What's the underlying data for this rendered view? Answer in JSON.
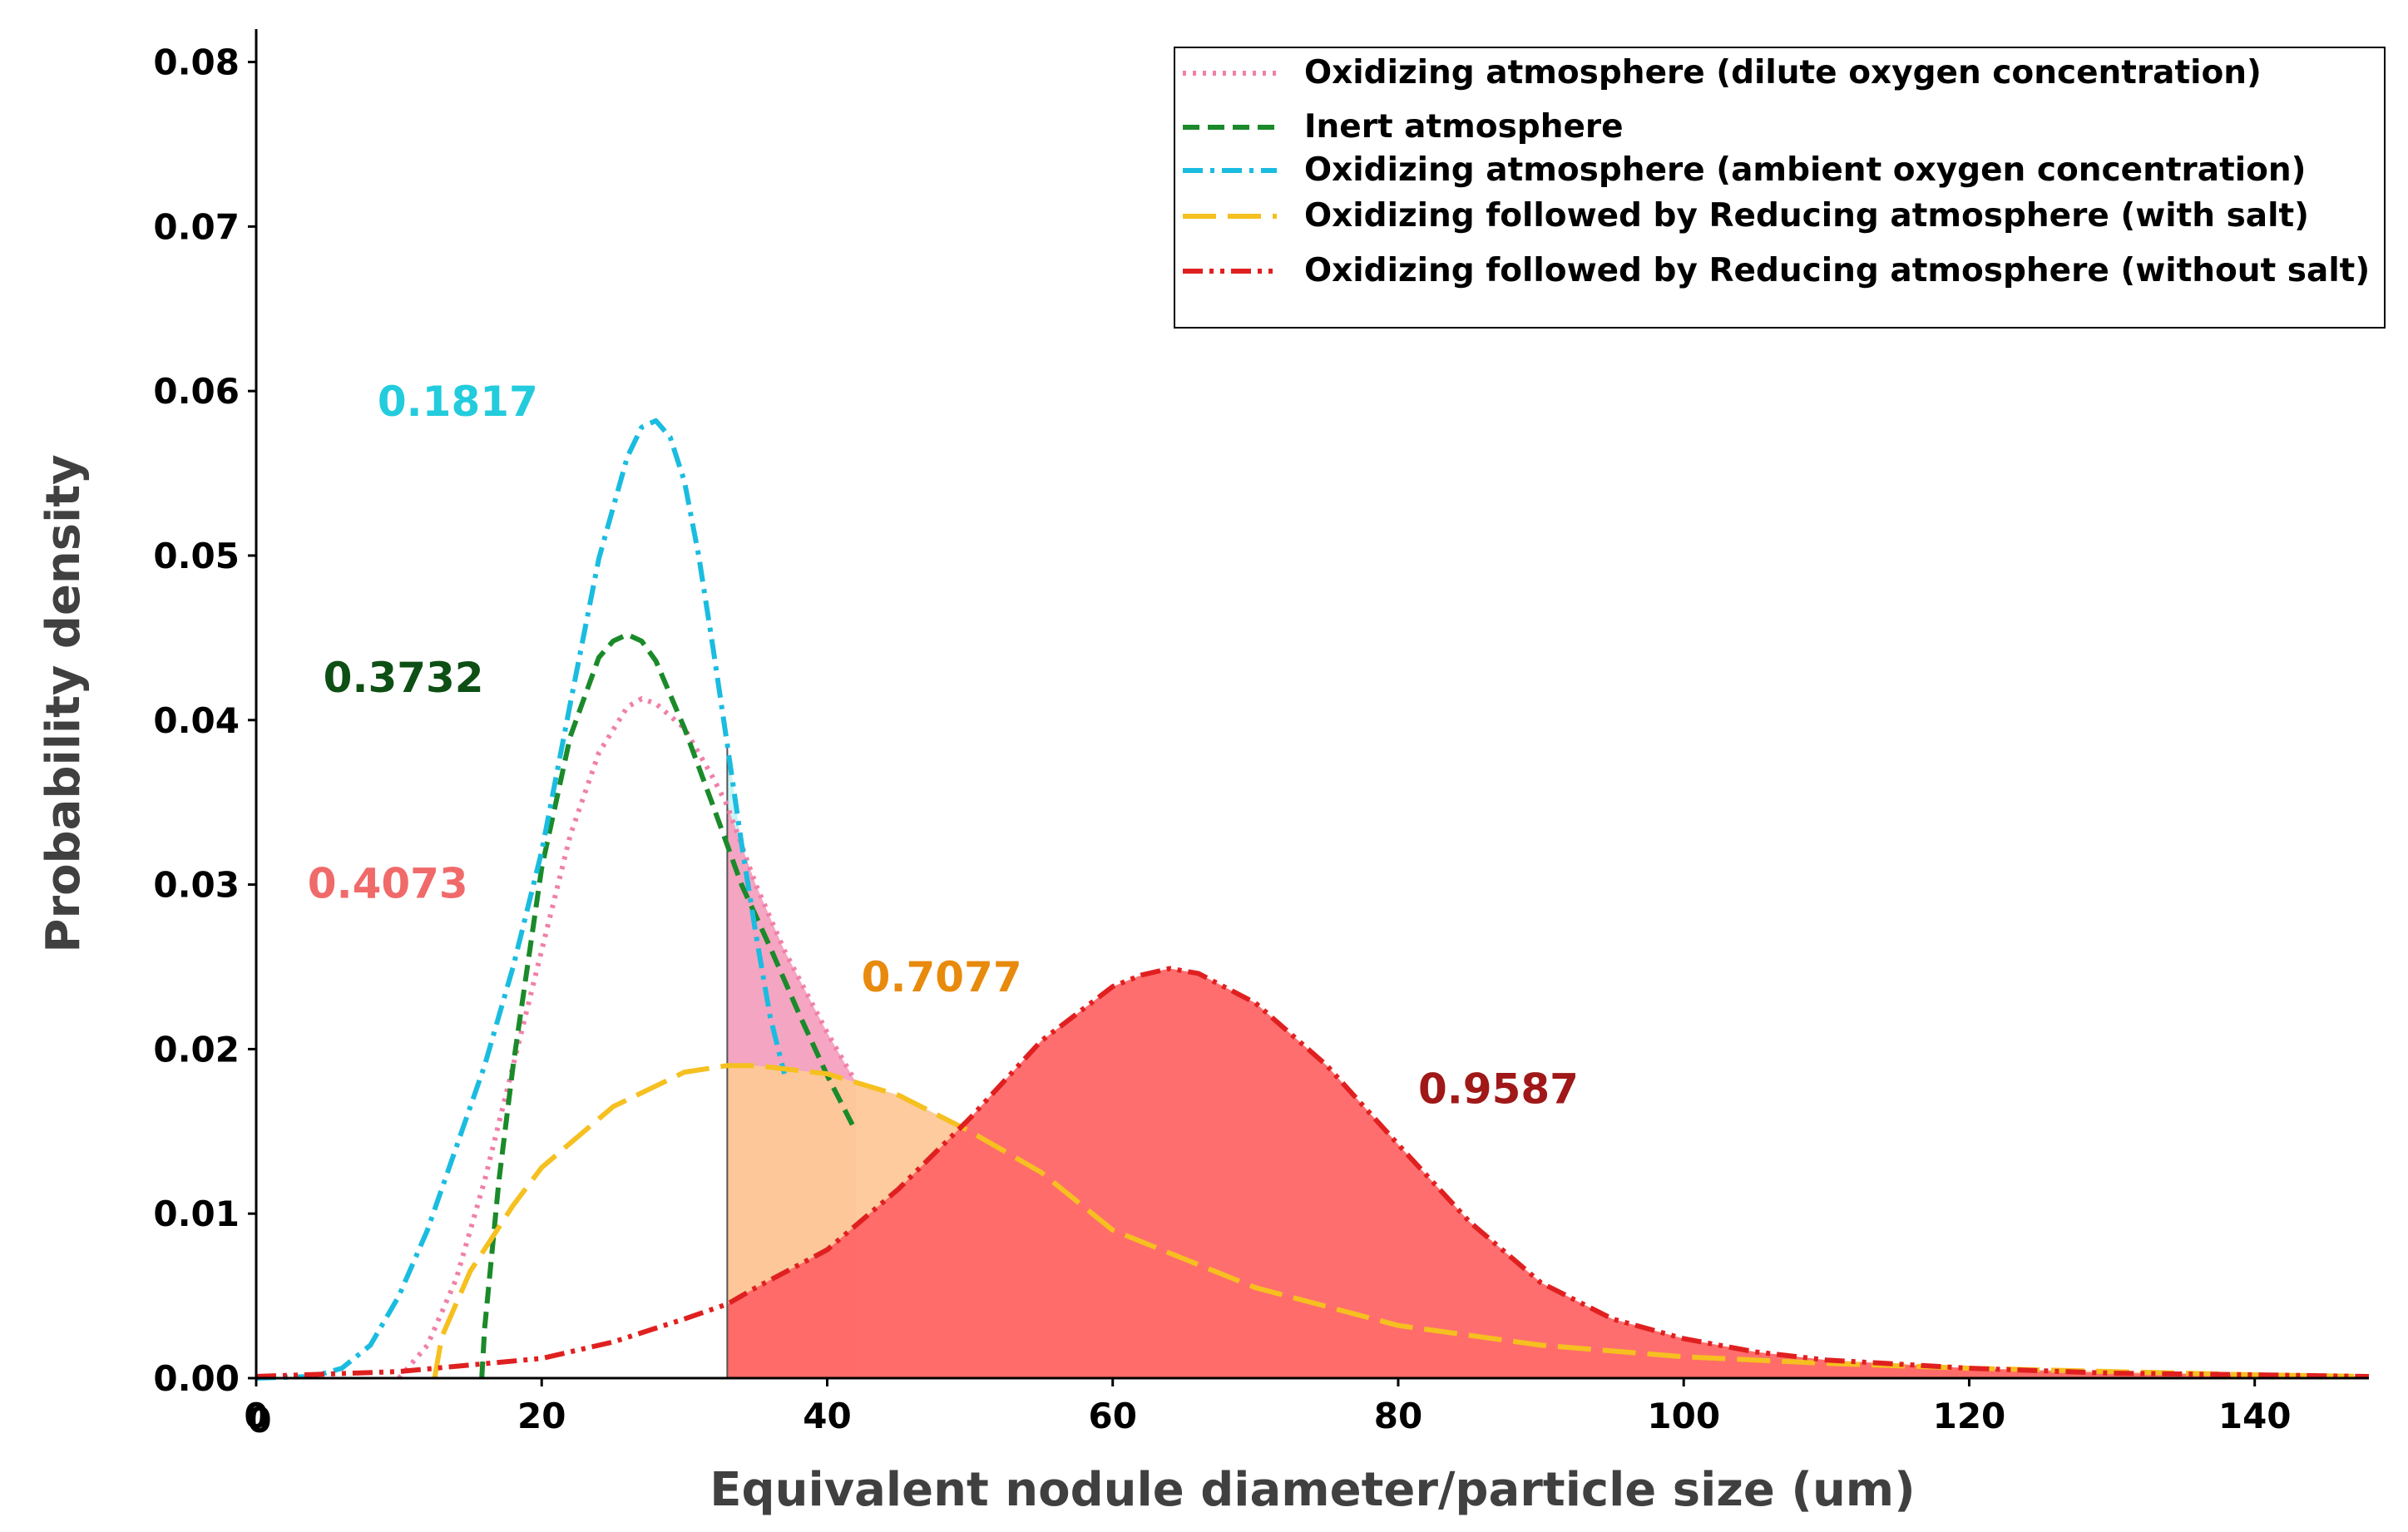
{
  "chart_data": {
    "type": "line",
    "title": "",
    "xlabel": "Equivalent nodule diameter/particle size (um)",
    "ylabel": "Probability density",
    "xlim": [
      0,
      148
    ],
    "ylim": [
      0,
      0.082
    ],
    "x_ticks": [
      0,
      20,
      40,
      60,
      80,
      100,
      120,
      140
    ],
    "y_ticks": [
      0.0,
      0.01,
      0.02,
      0.03,
      0.04,
      0.05,
      0.06,
      0.07,
      0.08
    ],
    "x_tick_labels": [
      "0",
      "20",
      "40",
      "60",
      "80",
      "100",
      "120",
      "140"
    ],
    "y_tick_labels": [
      "0.00",
      "0.01",
      "0.02",
      "0.03",
      "0.04",
      "0.05",
      "0.06",
      "0.07",
      "0.08"
    ],
    "origin_extra_label": "0",
    "grid": false,
    "legend_position": "top-right",
    "threshold_x": 33,
    "series": [
      {
        "name": "Oxidizing atmosphere (dilute oxygen concentration)",
        "color": "#F080A8",
        "dash": "dotted",
        "fill_color": "#F5A0C0",
        "tail_probability": "0.4073",
        "x": [
          10,
          12,
          14,
          16,
          18,
          20,
          22,
          24,
          26,
          27,
          28,
          30,
          32,
          33,
          35,
          37,
          40,
          42
        ],
        "y": [
          0.0,
          0.002,
          0.006,
          0.012,
          0.019,
          0.026,
          0.033,
          0.038,
          0.0408,
          0.0413,
          0.041,
          0.0395,
          0.0365,
          0.0348,
          0.03,
          0.026,
          0.021,
          0.018
        ]
      },
      {
        "name": "Inert atmosphere",
        "color": "#1A8A2A",
        "dash": "dashed",
        "fill_color": "#CDEFC8",
        "tail_probability": "0.3732",
        "x": [
          15.8,
          16,
          17,
          18,
          20,
          22,
          24,
          25,
          26,
          27,
          28,
          30,
          32,
          34,
          36,
          38,
          40,
          42
        ],
        "y": [
          0.0,
          0.003,
          0.012,
          0.019,
          0.031,
          0.039,
          0.0438,
          0.0448,
          0.0452,
          0.0448,
          0.0436,
          0.0395,
          0.0348,
          0.03,
          0.0262,
          0.0222,
          0.0184,
          0.015
        ]
      },
      {
        "name": "Oxidizing atmosphere (ambient oxygen concentration)",
        "color": "#1ABCE0",
        "dash": "dashdot",
        "fill_color": "#C6F4F4",
        "tail_probability": "0.1817",
        "x": [
          0,
          4,
          6,
          8,
          10,
          12,
          14,
          16,
          18,
          20,
          22,
          24,
          26,
          27,
          28,
          29,
          30,
          31,
          32,
          33,
          34,
          35,
          36,
          37
        ],
        "y": [
          0.0,
          0.0001,
          0.0006,
          0.002,
          0.005,
          0.009,
          0.014,
          0.019,
          0.025,
          0.032,
          0.041,
          0.0498,
          0.056,
          0.0578,
          0.0582,
          0.0572,
          0.0545,
          0.05,
          0.0444,
          0.0385,
          0.0325,
          0.027,
          0.022,
          0.0185
        ]
      },
      {
        "name": "Oxidizing followed by Reducing atmosphere (with salt)",
        "color": "#F5C020",
        "dash": "longdash",
        "fill_color": "#FDC898",
        "tail_probability": "0.7077",
        "x": [
          12.5,
          13,
          15,
          18,
          20,
          25,
          30,
          33,
          35,
          40,
          45,
          50,
          55,
          60,
          70,
          80,
          90,
          100,
          110,
          120,
          130,
          140,
          148
        ],
        "y": [
          0.0,
          0.0025,
          0.0065,
          0.0105,
          0.0128,
          0.0165,
          0.0186,
          0.019,
          0.019,
          0.0185,
          0.0172,
          0.015,
          0.0125,
          0.009,
          0.0055,
          0.0032,
          0.002,
          0.0013,
          0.0009,
          0.0006,
          0.0004,
          0.0002,
          0.0001
        ]
      },
      {
        "name": "Oxidizing followed by Reducing atmosphere (without salt)",
        "color": "#E02020",
        "dash": "dashdotdot",
        "fill_color": "#FF6666",
        "tail_probability": "0.9587",
        "x": [
          0,
          10,
          20,
          25,
          30,
          33,
          35,
          40,
          45,
          50,
          55,
          60,
          62,
          64,
          66,
          70,
          75,
          80,
          85,
          90,
          95,
          100,
          105,
          110,
          120,
          130,
          140,
          148
        ],
        "y": [
          0.0001,
          0.0004,
          0.0012,
          0.0022,
          0.0036,
          0.0045,
          0.0055,
          0.0078,
          0.0115,
          0.0158,
          0.0205,
          0.0238,
          0.0245,
          0.0249,
          0.0246,
          0.0228,
          0.019,
          0.0142,
          0.0095,
          0.0058,
          0.0036,
          0.0024,
          0.0016,
          0.0011,
          0.0006,
          0.0003,
          0.0002,
          0.0001
        ]
      }
    ],
    "annotations": [
      {
        "text": "0.1817",
        "x": 8.5,
        "y": 0.0585,
        "color": "#22CCDD"
      },
      {
        "text": "0.3732",
        "x": 4.7,
        "y": 0.0417,
        "color": "#0D4F14"
      },
      {
        "text": "0.4073",
        "x": 3.6,
        "y": 0.0292,
        "color": "#F06A6A"
      },
      {
        "text": "0.7077",
        "x": 42.4,
        "y": 0.0235,
        "color": "#E88A0C"
      },
      {
        "text": "0.9587",
        "x": 81.4,
        "y": 0.0167,
        "color": "#A01818"
      }
    ]
  }
}
